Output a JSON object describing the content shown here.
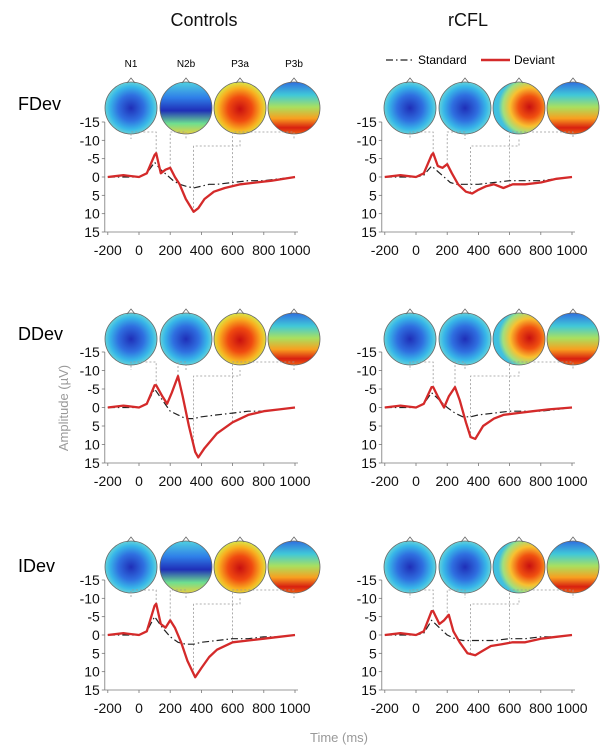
{
  "column_titles": [
    "Controls",
    "rCFL"
  ],
  "component_labels": [
    "N1",
    "N2b",
    "P3a",
    "P3b"
  ],
  "legend": {
    "standard": "Standard",
    "deviant": "Deviant",
    "placement": "top-right"
  },
  "colors": {
    "standard": "#222222",
    "deviant": "#d42a2a",
    "axis_label": "#999999",
    "connector": "#999999"
  },
  "y_axis_label": "Amplitude (µV)",
  "x_axis_label": "Time (ms)",
  "chart_data": {
    "type": "line",
    "x_ticks": [
      "-200",
      "0",
      "200",
      "400",
      "600",
      "800",
      "1000"
    ],
    "y_ticks": [
      "-15",
      "-10",
      "-5",
      "0",
      "5",
      "10",
      "15"
    ],
    "xlim": [
      -200,
      1000
    ],
    "ylim": [
      -15,
      15
    ],
    "y_inverted": true,
    "panels": [
      {
        "row": "FDev",
        "group": "Controls",
        "component_latencies_ms": [
          110,
          200,
          350,
          600
        ],
        "series": [
          {
            "name": "Standard",
            "x": [
              -200,
              -100,
              0,
              50,
              100,
              140,
              180,
              220,
              260,
              300,
              350,
              400,
              450,
              500,
              600,
              700,
              800,
              900,
              1000
            ],
            "y": [
              0,
              0,
              0,
              -1,
              -4,
              -2,
              -0.5,
              1,
              2,
              2.5,
              3,
              2.5,
              2,
              2,
              1.5,
              1,
              1,
              0.5,
              0
            ]
          },
          {
            "name": "Deviant",
            "x": [
              -200,
              -100,
              0,
              50,
              100,
              110,
              140,
              170,
              200,
              230,
              260,
              300,
              350,
              380,
              420,
              480,
              550,
              650,
              750,
              850,
              1000
            ],
            "y": [
              0,
              -0.5,
              0,
              -1,
              -6,
              -6.5,
              -1,
              -2,
              -2.5,
              0,
              2,
              6,
              9.5,
              8.5,
              6,
              4,
              3,
              2,
              1.5,
              1,
              0
            ]
          }
        ]
      },
      {
        "row": "FDev",
        "group": "rCFL",
        "component_latencies_ms": [
          110,
          200,
          350,
          600
        ],
        "series": [
          {
            "name": "Standard",
            "x": [
              -200,
              -100,
              0,
              50,
              100,
              140,
              180,
              220,
              260,
              300,
              350,
              400,
              500,
              600,
              700,
              800,
              900,
              1000
            ],
            "y": [
              0,
              0,
              0,
              -0.5,
              -3,
              -1.5,
              0,
              1.5,
              2,
              2,
              2,
              2,
              1.5,
              1,
              1,
              1,
              0.5,
              0
            ]
          },
          {
            "name": "Deviant",
            "x": [
              -200,
              -100,
              0,
              50,
              100,
              110,
              140,
              170,
              200,
              230,
              270,
              320,
              360,
              400,
              450,
              500,
              560,
              620,
              700,
              800,
              900,
              1000
            ],
            "y": [
              0,
              -0.5,
              0,
              -1,
              -6,
              -6.5,
              -3,
              -2.5,
              -3.5,
              -1,
              2,
              4,
              4.5,
              3.5,
              2.5,
              2,
              3,
              2,
              2,
              1.5,
              0.5,
              0
            ]
          }
        ]
      },
      {
        "row": "DDev",
        "group": "Controls",
        "component_latencies_ms": [
          110,
          250,
          350,
          600
        ],
        "series": [
          {
            "name": "Standard",
            "x": [
              -200,
              -100,
              0,
              50,
              100,
              150,
              200,
              250,
              300,
              350,
              400,
              500,
              600,
              700,
              800,
              900,
              1000
            ],
            "y": [
              0,
              0,
              0,
              -1,
              -5,
              -2,
              1,
              2,
              3,
              3,
              2.5,
              2,
              1.5,
              1,
              1,
              0.5,
              0
            ]
          },
          {
            "name": "Deviant",
            "x": [
              -200,
              -100,
              0,
              50,
              100,
              110,
              150,
              180,
              210,
              250,
              280,
              320,
              360,
              380,
              420,
              500,
              600,
              700,
              800,
              900,
              1000
            ],
            "y": [
              0,
              -0.5,
              0,
              -1,
              -6,
              -6,
              -3,
              -1,
              -4,
              -8.5,
              -3,
              5,
              12,
              13.5,
              11,
              7,
              4,
              2,
              1,
              0.5,
              0
            ]
          }
        ]
      },
      {
        "row": "DDev",
        "group": "rCFL",
        "component_latencies_ms": [
          110,
          250,
          350,
          600
        ],
        "series": [
          {
            "name": "Standard",
            "x": [
              -200,
              -100,
              0,
              50,
              100,
              150,
              200,
              250,
              300,
              350,
              400,
              500,
              600,
              700,
              800,
              900,
              1000
            ],
            "y": [
              0,
              0,
              0,
              -1,
              -4,
              -2,
              0,
              1.5,
              2.5,
              2.5,
              2,
              1.5,
              1,
              1,
              1,
              0.5,
              0
            ]
          },
          {
            "name": "Deviant",
            "x": [
              -200,
              -100,
              0,
              50,
              100,
              110,
              140,
              180,
              210,
              250,
              280,
              320,
              350,
              380,
              430,
              500,
              560,
              650,
              750,
              850,
              1000
            ],
            "y": [
              0,
              -0.5,
              0,
              -1,
              -5.5,
              -5.5,
              -3,
              0,
              -3,
              -5.5,
              -2,
              4,
              8,
              8.5,
              5,
              3,
              2,
              1.5,
              1,
              0.5,
              0
            ]
          }
        ]
      },
      {
        "row": "IDev",
        "group": "Controls",
        "component_latencies_ms": [
          110,
          200,
          350,
          600
        ],
        "series": [
          {
            "name": "Standard",
            "x": [
              -200,
              -100,
              0,
              50,
              100,
              150,
              200,
              250,
              300,
              350,
              400,
              500,
              600,
              700,
              800,
              900,
              1000
            ],
            "y": [
              0,
              0,
              0,
              -1,
              -5,
              -2,
              0.5,
              2,
              2.5,
              2.5,
              2,
              1.5,
              1,
              1,
              0.5,
              0.5,
              0
            ]
          },
          {
            "name": "Deviant",
            "x": [
              -200,
              -100,
              0,
              50,
              100,
              110,
              140,
              170,
              200,
              230,
              270,
              310,
              360,
              400,
              450,
              500,
              600,
              700,
              800,
              900,
              1000
            ],
            "y": [
              0,
              -0.5,
              0,
              -1,
              -8,
              -8.5,
              -3,
              -2,
              -4,
              -2,
              2,
              7,
              11.5,
              9,
              6,
              4,
              2,
              1.5,
              1,
              0.5,
              0
            ]
          }
        ]
      },
      {
        "row": "IDev",
        "group": "rCFL",
        "component_latencies_ms": [
          110,
          200,
          350,
          600
        ],
        "series": [
          {
            "name": "Standard",
            "x": [
              -200,
              -100,
              0,
              50,
              100,
              150,
              200,
              250,
              300,
              350,
              400,
              500,
              600,
              700,
              800,
              900,
              1000
            ],
            "y": [
              0,
              0,
              0,
              -0.5,
              -4,
              -2,
              0,
              1,
              1.5,
              1.5,
              1.5,
              1.5,
              1,
              1,
              0.5,
              0.5,
              0
            ]
          },
          {
            "name": "Deviant",
            "x": [
              -200,
              -100,
              0,
              50,
              100,
              110,
              150,
              180,
              210,
              240,
              280,
              330,
              380,
              420,
              480,
              550,
              620,
              700,
              800,
              900,
              1000
            ],
            "y": [
              0,
              -0.5,
              0,
              -1,
              -6.5,
              -6.5,
              -3,
              -4,
              -5.5,
              -1,
              2,
              5,
              5.5,
              4.5,
              3,
              2.5,
              2,
              2,
              1,
              0.5,
              0
            ]
          }
        ]
      }
    ],
    "topomaps": [
      [
        "blue",
        "blue-band",
        "red-center",
        "red-low"
      ],
      [
        "blue",
        "blue",
        "red-right",
        "red-low"
      ],
      [
        "blue",
        "blue",
        "red-center",
        "red-low"
      ],
      [
        "blue",
        "blue",
        "red-right",
        "red-low"
      ],
      [
        "blue",
        "blue-band",
        "red-center",
        "red-low"
      ],
      [
        "blue",
        "blue",
        "red-right",
        "red-low"
      ]
    ]
  }
}
